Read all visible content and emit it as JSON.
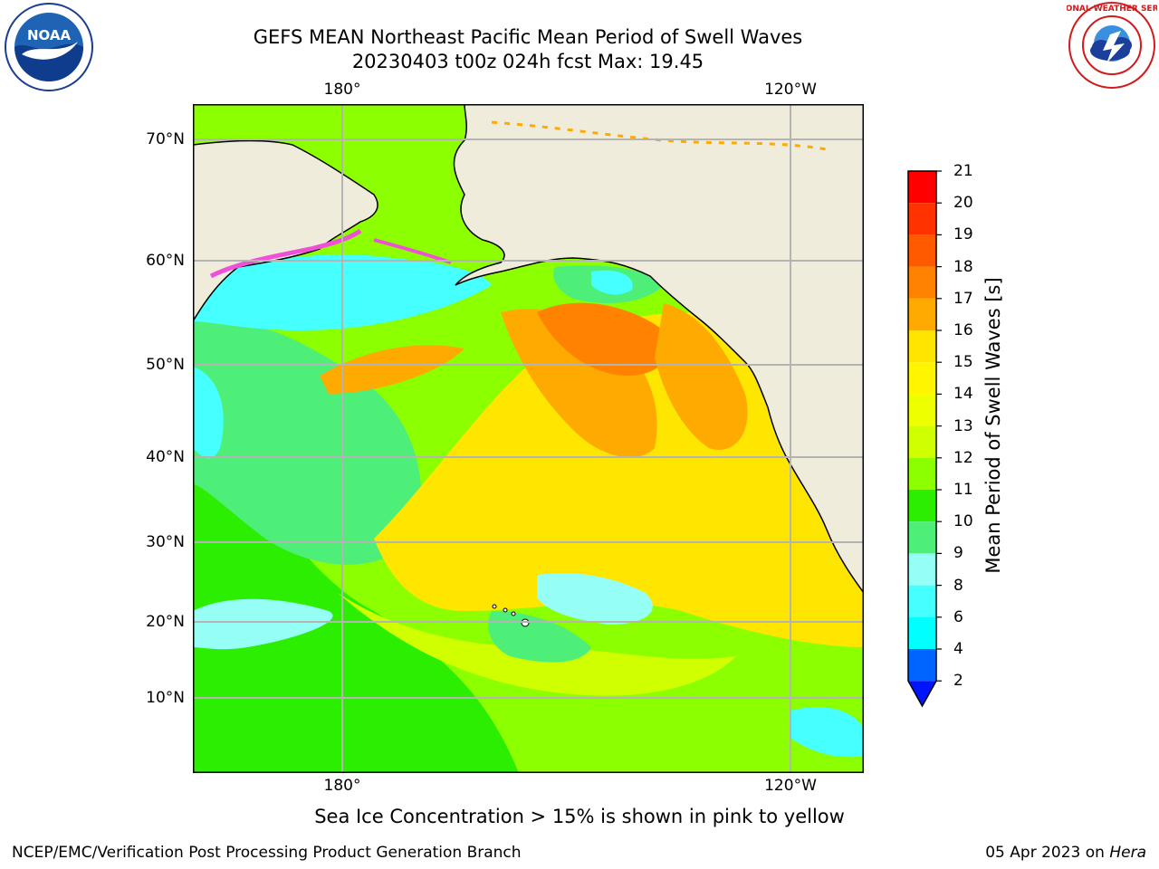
{
  "header": {
    "title_line1": "GEFS MEAN Northeast Pacific Mean Period of Swell Waves",
    "title_line2": "20230403 t00z 024h fcst   Max: 19.45"
  },
  "logos": {
    "left": {
      "name": "noaa-logo",
      "text": "NOAA"
    },
    "right": {
      "name": "nws-logo",
      "text": "NATIONAL WEATHER SERVICE"
    }
  },
  "map": {
    "top_lon_labels": [
      "180°",
      "120°W"
    ],
    "bottom_lon_labels": [
      "180°",
      "120°W"
    ],
    "lat_labels": [
      "70°N",
      "60°N",
      "50°N",
      "40°N",
      "30°N",
      "20°N",
      "10°N"
    ],
    "colors": {
      "land": "#efecdc",
      "gridline": "#b4b4b4",
      "sea_ice": "#f050d8"
    }
  },
  "colorbar": {
    "title": "Mean Period of Swell Waves [s]",
    "labels": [
      "21",
      "20",
      "19",
      "18",
      "17",
      "16",
      "15",
      "14",
      "13",
      "12",
      "11",
      "10",
      "9",
      "8",
      "6",
      "4",
      "2"
    ],
    "colors": [
      "#ff0000",
      "#ff3200",
      "#ff5a00",
      "#ff8200",
      "#ffaa00",
      "#ffe600",
      "#fff500",
      "#eeff00",
      "#cfff00",
      "#8cff00",
      "#2cee00",
      "#4eef78",
      "#96fff5",
      "#46ffff",
      "#00ffff",
      "#00dcff",
      "#0064ff",
      "#0014ff"
    ]
  },
  "note": "Sea Ice Concentration > 15% is shown in pink to yellow",
  "footer": {
    "left": "NCEP/EMC/Verification Post Processing Product Generation Branch",
    "right_date": "05 Apr 2023 on ",
    "right_host": "Hera"
  }
}
